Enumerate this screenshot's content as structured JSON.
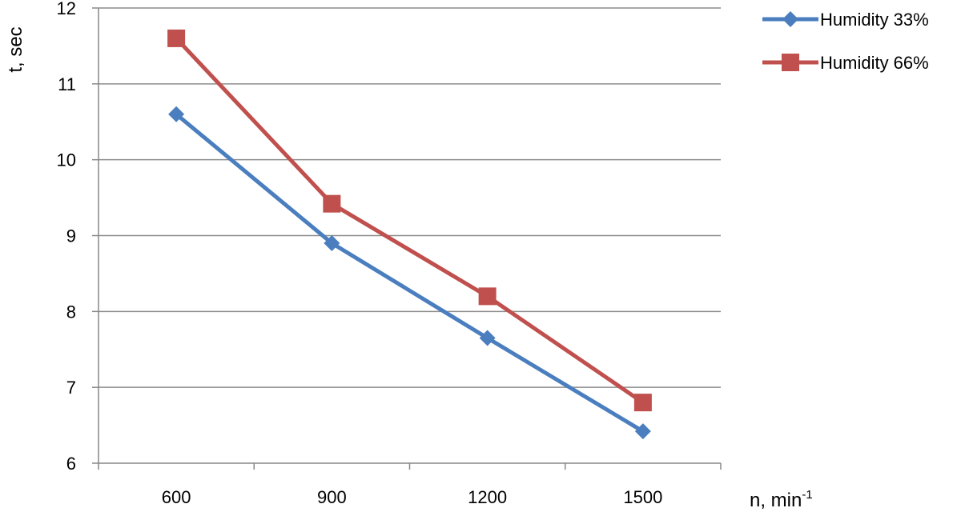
{
  "chart_data": {
    "type": "line",
    "x": [
      600,
      900,
      1200,
      1500
    ],
    "categories": [
      "600",
      "900",
      "1200",
      "1500"
    ],
    "series": [
      {
        "name": "Humidity 33%",
        "values": [
          10.6,
          8.9,
          7.65,
          6.42
        ],
        "color": "#4a7ebf",
        "marker": "diamond"
      },
      {
        "name": "Humidity 66%",
        "values": [
          11.6,
          9.42,
          8.2,
          6.8
        ],
        "color": "#c0504d",
        "marker": "square"
      }
    ],
    "ylabel": "t,  sec",
    "xlabel_base": "n,  min",
    "xlabel_sup": "-1",
    "ylim": [
      6,
      12
    ],
    "yticks": [
      "6",
      "7",
      "8",
      "9",
      "10",
      "11",
      "12"
    ],
    "grid": true,
    "legend": "top-right"
  }
}
